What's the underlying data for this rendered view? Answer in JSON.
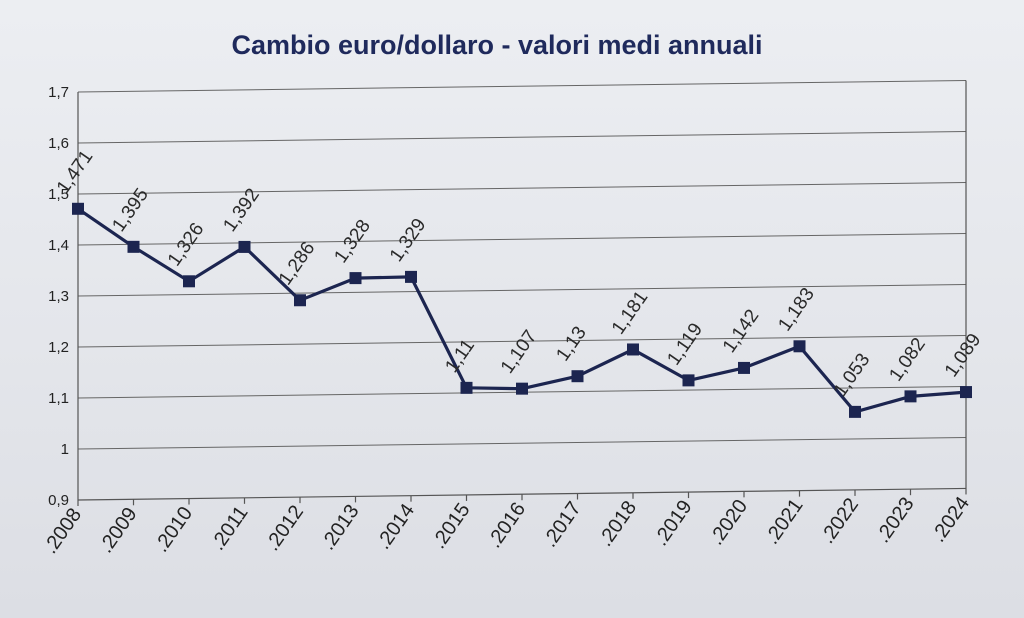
{
  "chart_data": {
    "type": "line",
    "title": "Cambio euro/dollaro - valori medi annuali",
    "xlabel": "",
    "ylabel": "",
    "categories": [
      ".2008",
      ".2009",
      ".2010",
      ".2011",
      ".2012",
      ".2013",
      ".2014",
      ".2015",
      ".2016",
      ".2017",
      ".2018",
      ".2019",
      ".2020",
      ".2021",
      ".2022",
      ".2023",
      ".2024"
    ],
    "series": [
      {
        "values": [
          1.471,
          1.395,
          1.326,
          1.392,
          1.286,
          1.328,
          1.329,
          1.11,
          1.107,
          1.13,
          1.181,
          1.119,
          1.142,
          1.183,
          1.053,
          1.082,
          1.089
        ],
        "labels": [
          "1,471",
          "1,395",
          "1,326",
          "1,392",
          "1,286",
          "1,328",
          "1,329",
          "1,11",
          "1,107",
          "1,13",
          "1,181",
          "1,119",
          "1,142",
          "1,183",
          "1,053",
          "1,082",
          "1,089"
        ],
        "color": "#1c2550"
      }
    ],
    "ylim": [
      0.9,
      1.7
    ],
    "yticks": [
      0.9,
      1.0,
      1.1,
      1.2,
      1.3,
      1.4,
      1.5,
      1.6,
      1.7
    ],
    "ytick_labels": [
      "0,9",
      "1",
      "1,1",
      "1,2",
      "1,3",
      "1,4",
      "1,5",
      "1,6",
      "1,7"
    ],
    "grid": true,
    "legend": "none"
  }
}
